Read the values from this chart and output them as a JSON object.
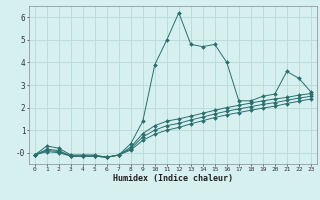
{
  "title": "",
  "xlabel": "Humidex (Indice chaleur)",
  "ylabel": "",
  "background_color": "#d6f0f0",
  "grid_color": "#b8d8d8",
  "line_color": "#2a6e6e",
  "xlim": [
    -0.5,
    23.5
  ],
  "ylim": [
    -0.5,
    6.5
  ],
  "xticks": [
    0,
    1,
    2,
    3,
    4,
    5,
    6,
    7,
    8,
    9,
    10,
    11,
    12,
    13,
    14,
    15,
    16,
    17,
    18,
    19,
    20,
    21,
    22,
    23
  ],
  "yticks": [
    0,
    1,
    2,
    3,
    4,
    5,
    6
  ],
  "lines": [
    {
      "x": [
        0,
        1,
        2,
        3,
        4,
        5,
        6,
        7,
        8,
        9,
        10,
        11,
        12,
        13,
        14,
        15,
        16,
        17,
        18,
        19,
        20,
        21,
        22,
        23
      ],
      "y": [
        -0.1,
        0.3,
        0.2,
        -0.1,
        -0.1,
        -0.1,
        -0.2,
        -0.1,
        0.4,
        1.4,
        3.9,
        5.0,
        6.2,
        4.8,
        4.7,
        4.8,
        4.0,
        2.3,
        2.3,
        2.5,
        2.6,
        3.6,
        3.3,
        2.7
      ]
    },
    {
      "x": [
        0,
        1,
        2,
        3,
        4,
        5,
        6,
        7,
        8,
        9,
        10,
        11,
        12,
        13,
        14,
        15,
        16,
        17,
        18,
        19,
        20,
        21,
        22,
        23
      ],
      "y": [
        -0.1,
        0.15,
        0.1,
        -0.15,
        -0.15,
        -0.15,
        -0.2,
        -0.1,
        0.25,
        0.85,
        1.2,
        1.4,
        1.5,
        1.62,
        1.75,
        1.88,
        2.0,
        2.1,
        2.2,
        2.3,
        2.38,
        2.45,
        2.55,
        2.62
      ]
    },
    {
      "x": [
        0,
        1,
        2,
        3,
        4,
        5,
        6,
        7,
        8,
        9,
        10,
        11,
        12,
        13,
        14,
        15,
        16,
        17,
        18,
        19,
        20,
        21,
        22,
        23
      ],
      "y": [
        -0.1,
        0.1,
        0.05,
        -0.15,
        -0.15,
        -0.15,
        -0.2,
        -0.1,
        0.18,
        0.7,
        1.0,
        1.2,
        1.3,
        1.45,
        1.58,
        1.72,
        1.84,
        1.94,
        2.04,
        2.14,
        2.22,
        2.32,
        2.42,
        2.5
      ]
    },
    {
      "x": [
        0,
        1,
        2,
        3,
        4,
        5,
        6,
        7,
        8,
        9,
        10,
        11,
        12,
        13,
        14,
        15,
        16,
        17,
        18,
        19,
        20,
        21,
        22,
        23
      ],
      "y": [
        -0.1,
        0.05,
        0.0,
        -0.15,
        -0.15,
        -0.15,
        -0.2,
        -0.1,
        0.12,
        0.55,
        0.82,
        1.0,
        1.12,
        1.28,
        1.42,
        1.56,
        1.68,
        1.78,
        1.88,
        1.98,
        2.06,
        2.18,
        2.28,
        2.38
      ]
    }
  ]
}
